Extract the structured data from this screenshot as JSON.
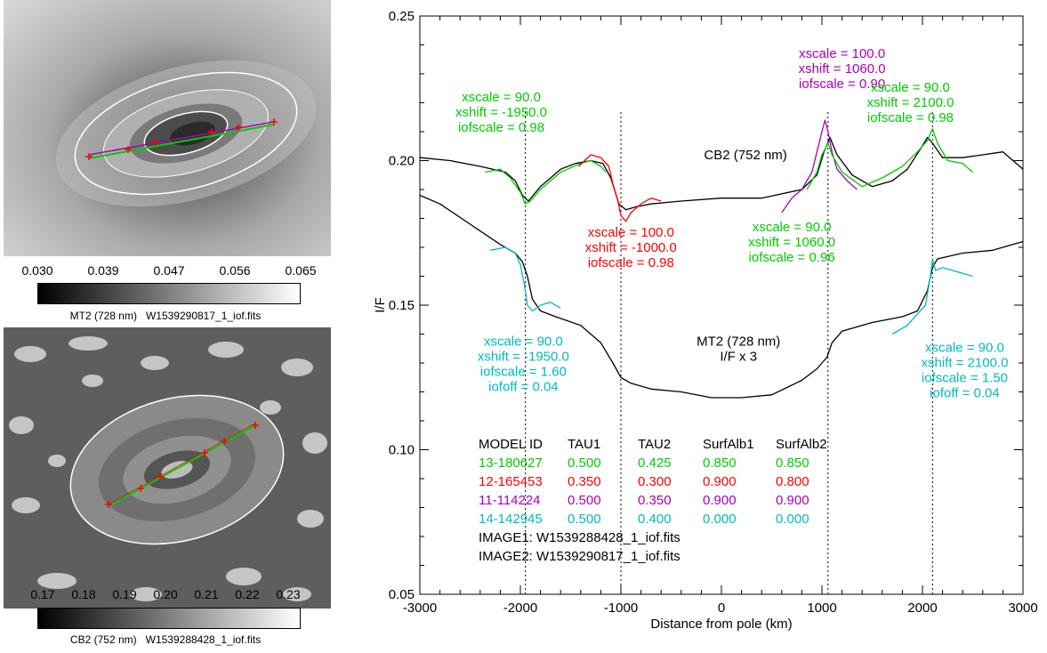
{
  "left_panels": {
    "top": {
      "colorbar_ticks": [
        "0.030",
        "0.039",
        "0.047",
        "0.056",
        "0.065"
      ],
      "caption": "MT2 (728 nm)   W1539290817_1_iof.fits"
    },
    "bottom": {
      "colorbar_ticks": [
        "0.17",
        "0.18",
        "0.19",
        "0.20",
        "0.21",
        "0.22",
        "0.23"
      ],
      "caption": "CB2 (752 nm)   W1539288428_1_iof.fits"
    }
  },
  "chart_data": {
    "type": "line",
    "xlabel": "Distance from pole (km)",
    "ylabel": "I/F",
    "xlim": [
      -3000,
      3000
    ],
    "ylim": [
      0.05,
      0.25
    ],
    "xticks": [
      "-3000",
      "-2000",
      "-1000",
      "0",
      "1000",
      "2000",
      "3000"
    ],
    "yticks": [
      "0.05",
      "0.10",
      "0.15",
      "0.20",
      "0.25"
    ],
    "vlines_dotted": [
      -1950,
      -1000,
      1060,
      2100
    ],
    "colors": {
      "data": "#000000",
      "green": "#00cc00",
      "red": "#ff0000",
      "purple": "#aa00bb",
      "cyan": "#00bbbb"
    },
    "series": [
      {
        "color": "black",
        "x": [
          -3000,
          -2700,
          -2400,
          -2150,
          -2050,
          -1980,
          -1920,
          -1800,
          -1600,
          -1450,
          -1300,
          -1180,
          -1100,
          -1020,
          -950,
          -850,
          -700,
          -400,
          0,
          400,
          800,
          950,
          1020,
          1080,
          1150,
          1300,
          1500,
          1700,
          1850,
          1980,
          2050,
          2100,
          2200,
          2400,
          2600,
          2800,
          3000
        ],
        "y": [
          0.201,
          0.2,
          0.198,
          0.196,
          0.193,
          0.188,
          0.186,
          0.191,
          0.197,
          0.199,
          0.2,
          0.199,
          0.194,
          0.185,
          0.183,
          0.184,
          0.185,
          0.186,
          0.187,
          0.187,
          0.19,
          0.195,
          0.203,
          0.208,
          0.202,
          0.195,
          0.191,
          0.193,
          0.197,
          0.204,
          0.208,
          0.206,
          0.201,
          0.201,
          0.202,
          0.203,
          0.197
        ]
      },
      {
        "color": "black",
        "x": [
          -3000,
          -2800,
          -2500,
          -2200,
          -2050,
          -1980,
          -1930,
          -1880,
          -1800,
          -1650,
          -1400,
          -1200,
          -1080,
          -1000,
          -900,
          -700,
          -400,
          -100,
          200,
          500,
          800,
          950,
          1050,
          1100,
          1200,
          1500,
          1800,
          1950,
          2050,
          2100,
          2150,
          2400,
          2700,
          3000
        ],
        "y": [
          0.188,
          0.185,
          0.178,
          0.171,
          0.168,
          0.165,
          0.16,
          0.152,
          0.148,
          0.146,
          0.143,
          0.137,
          0.13,
          0.125,
          0.123,
          0.121,
          0.12,
          0.118,
          0.118,
          0.119,
          0.124,
          0.128,
          0.132,
          0.137,
          0.141,
          0.144,
          0.146,
          0.148,
          0.155,
          0.163,
          0.166,
          0.168,
          0.169,
          0.172
        ]
      },
      {
        "color": "green",
        "x": [
          -2350,
          -2200,
          -2100,
          -2000,
          -1950,
          -1900,
          -1800,
          -1600,
          -1400,
          -1300,
          -1200,
          -1150
        ],
        "y": [
          0.196,
          0.197,
          0.194,
          0.189,
          0.185,
          0.186,
          0.19,
          0.196,
          0.199,
          0.2,
          0.198,
          0.196
        ]
      },
      {
        "color": "red",
        "x": [
          -1420,
          -1300,
          -1200,
          -1120,
          -1080,
          -1030,
          -1000,
          -950,
          -900,
          -800,
          -700,
          -600
        ],
        "y": [
          0.198,
          0.202,
          0.201,
          0.198,
          0.192,
          0.186,
          0.181,
          0.179,
          0.182,
          0.185,
          0.187,
          0.186
        ]
      },
      {
        "color": "purple",
        "x": [
          600,
          700,
          800,
          900,
          950,
          1000,
          1030,
          1060,
          1100,
          1150,
          1250,
          1350
        ],
        "y": [
          0.182,
          0.187,
          0.19,
          0.196,
          0.203,
          0.21,
          0.214,
          0.21,
          0.203,
          0.197,
          0.193,
          0.19
        ]
      },
      {
        "color": "green",
        "x": [
          850,
          950,
          1000,
          1060,
          1100,
          1200,
          1400,
          1600,
          1800,
          1950,
          2050,
          2100,
          2150,
          2250,
          2400,
          2500
        ],
        "y": [
          0.19,
          0.196,
          0.202,
          0.206,
          0.202,
          0.196,
          0.191,
          0.194,
          0.198,
          0.203,
          0.207,
          0.211,
          0.206,
          0.2,
          0.199,
          0.196
        ]
      },
      {
        "color": "cyan",
        "x": [
          -2300,
          -2150,
          -2050,
          -2000,
          -1960,
          -1930,
          -1880,
          -1800,
          -1700,
          -1600
        ],
        "y": [
          0.169,
          0.17,
          0.168,
          0.164,
          0.157,
          0.15,
          0.148,
          0.15,
          0.151,
          0.149
        ]
      },
      {
        "color": "cyan",
        "x": [
          1700,
          1850,
          1950,
          2030,
          2080,
          2100,
          2130,
          2200,
          2300,
          2400,
          2500
        ],
        "y": [
          0.14,
          0.143,
          0.147,
          0.15,
          0.16,
          0.166,
          0.162,
          0.163,
          0.162,
          0.161,
          0.16
        ]
      }
    ],
    "annotations": [
      {
        "lines": [
          "xscale =  90.0",
          "xshift = -1950.0",
          "iofscale = 0.98"
        ],
        "color": "green",
        "x": -2190,
        "y": 0.2205
      },
      {
        "lines": [
          "xscale = 100.0",
          "xshift = 1060.0",
          "iofscale = 0.90"
        ],
        "color": "purple",
        "x": 1200,
        "y": 0.2356
      },
      {
        "lines": [
          "xscale =  90.0",
          "xshift = 2100.0",
          "iofscale = 0.98"
        ],
        "color": "green",
        "x": 1880,
        "y": 0.2239
      },
      {
        "lines": [
          "CB2 (752 nm)"
        ],
        "color": "black",
        "x": 240,
        "y": 0.2005
      },
      {
        "lines": [
          "xscale = 100.0",
          "xshift = -1000.0",
          "iofscale = 0.98"
        ],
        "color": "red",
        "x": -900,
        "y": 0.1737
      },
      {
        "lines": [
          "xscale =  90.0",
          "xshift = 1060.0",
          "iofscale = 0.96"
        ],
        "color": "green",
        "x": 700,
        "y": 0.1756
      },
      {
        "lines": [
          "xscale =  90.0",
          "xshift = -1950.0",
          "iofscale = 1.60",
          "iofoff = 0.04"
        ],
        "color": "cyan",
        "x": -1970,
        "y": 0.136
      },
      {
        "lines": [
          "MT2 (728 nm)",
          "I/F x 3"
        ],
        "color": "black",
        "x": 170,
        "y": 0.136
      },
      {
        "lines": [
          "xscale =  90.0",
          "xshift = 2100.0",
          "iofscale = 1.50",
          "iofoff = 0.04"
        ],
        "color": "cyan",
        "x": 2420,
        "y": 0.1339
      }
    ],
    "model_table": {
      "headers": [
        "MODEL ID",
        "TAU1",
        "TAU2",
        "SurfAlb1",
        "SurfAlb2"
      ],
      "rows": [
        {
          "color": "green",
          "cells": [
            "13-180627",
            "0.500",
            "0.425",
            "0.850",
            "0.850"
          ]
        },
        {
          "color": "red",
          "cells": [
            "12-165453",
            "0.350",
            "0.300",
            "0.900",
            "0.800"
          ]
        },
        {
          "color": "purple",
          "cells": [
            "11-114224",
            "0.500",
            "0.350",
            "0.900",
            "0.900"
          ]
        },
        {
          "color": "cyan",
          "cells": [
            "14-142945",
            "0.500",
            "0.400",
            "0.000",
            "0.000"
          ]
        }
      ],
      "footer": [
        "IMAGE1: W1539288428_1_iof.fits",
        "IMAGE2: W1539290817_1_iof.fits"
      ]
    }
  }
}
